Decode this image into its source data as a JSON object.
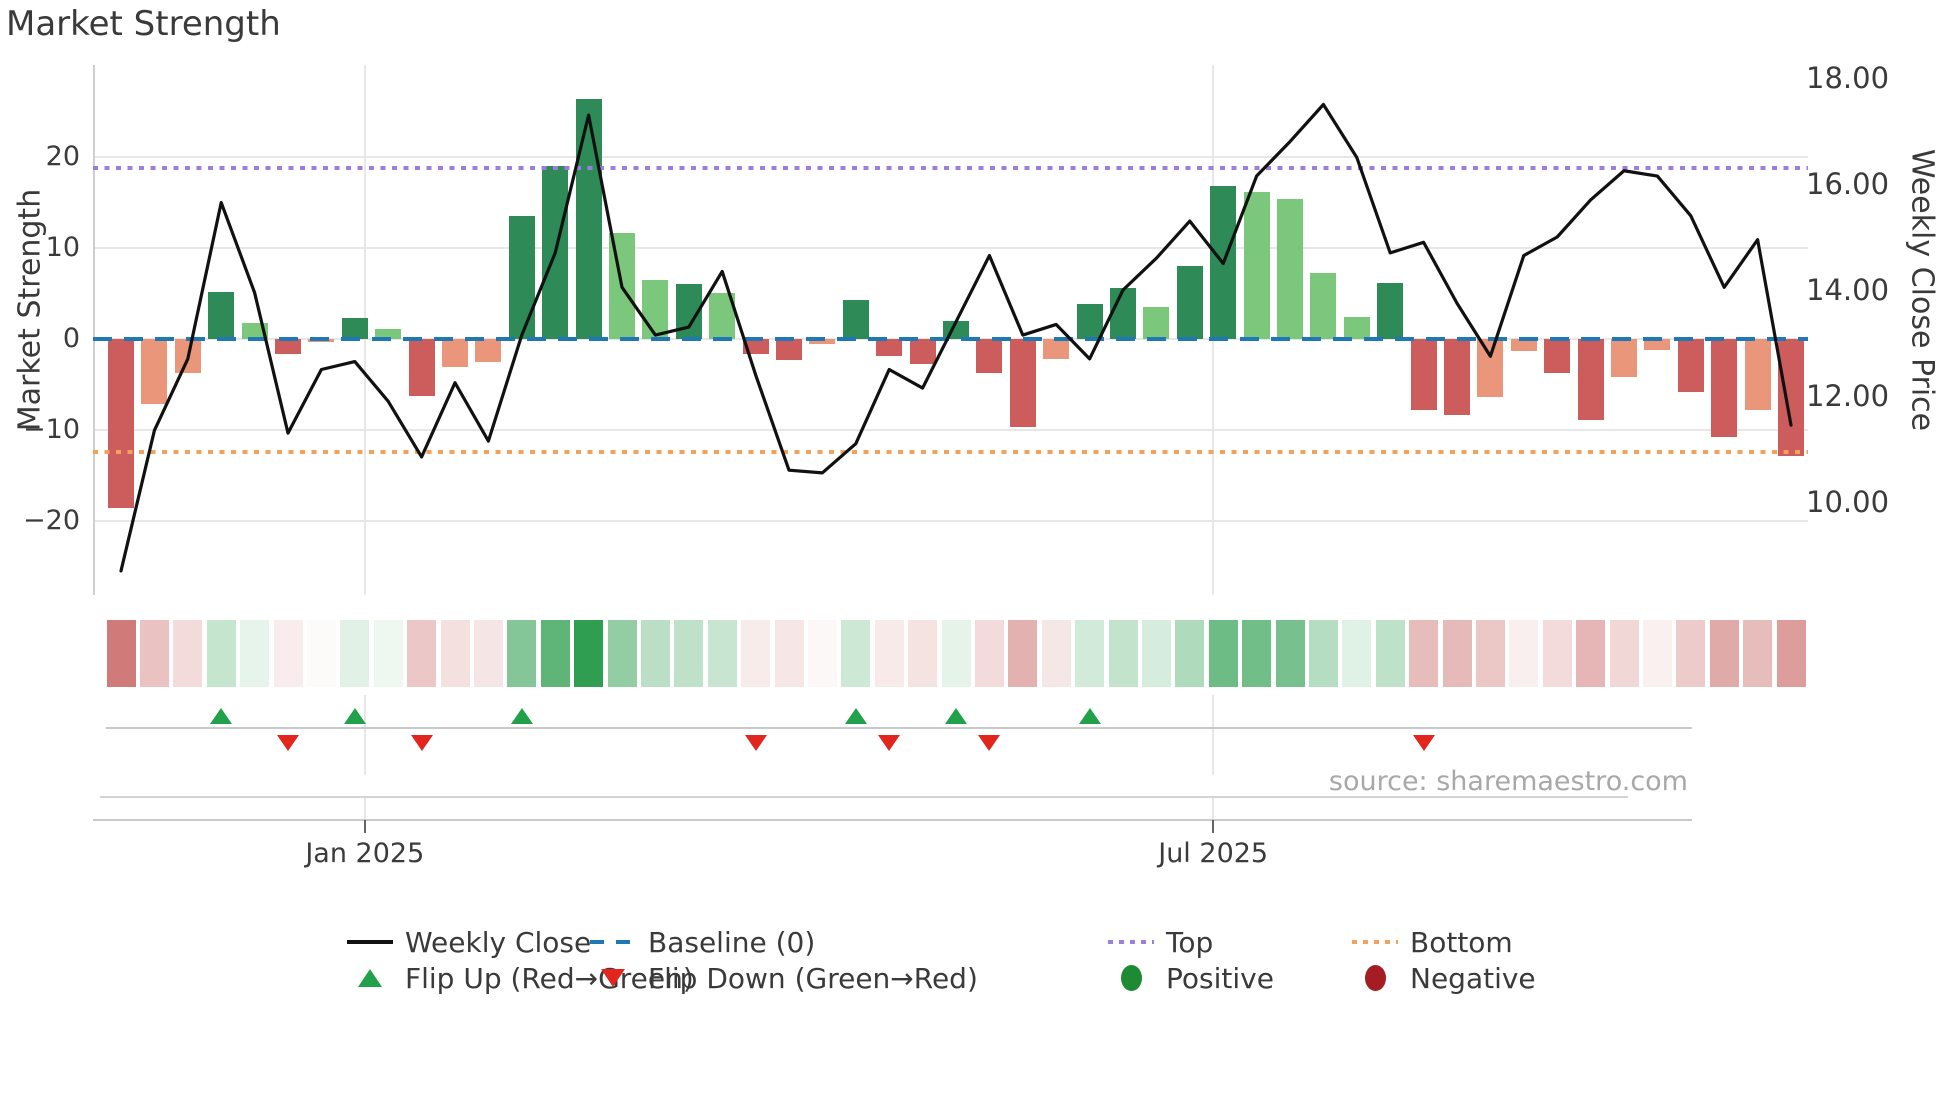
{
  "title": "Market Strength",
  "source": "source: sharemaestro.com",
  "axes": {
    "left_label": "Market Strength",
    "right_label": "Weekly Close Price"
  },
  "chart_data": {
    "type": "combo-bar-line-heatmap",
    "title": "Market Strength",
    "weeks": 51,
    "x_ticks": [
      {
        "label": "Jan 2025",
        "week": 8.3
      },
      {
        "label": "Jul 2025",
        "week": 33.7
      }
    ],
    "left_ticks": [
      {
        "label": "20",
        "value": 20
      },
      {
        "label": "10",
        "value": 10
      },
      {
        "label": "0",
        "value": 0
      },
      {
        "label": "−10",
        "value": -10
      },
      {
        "label": "−20",
        "value": -20
      }
    ],
    "right_ticks": [
      {
        "label": "18.00",
        "value": 18
      },
      {
        "label": "16.00",
        "value": 16
      },
      {
        "label": "14.00",
        "value": 14
      },
      {
        "label": "12.00",
        "value": 12
      },
      {
        "label": "10.00",
        "value": 10
      }
    ],
    "ylim_left": [
      -28.1,
      30.1
    ],
    "baseline_value": 0,
    "top_value": 18.8,
    "bottom_value": -12.4,
    "market_strength": [
      -18.6,
      -7.1,
      -3.7,
      5.2,
      1.8,
      -1.6,
      -0.3,
      2.3,
      1.1,
      -6.3,
      -3.1,
      -2.5,
      13.5,
      19.0,
      26.4,
      11.6,
      6.5,
      6.0,
      5.1,
      -1.7,
      -2.3,
      -0.5,
      4.3,
      -1.9,
      -2.7,
      2.0,
      -3.7,
      -9.7,
      -2.2,
      3.9,
      5.6,
      3.5,
      8.0,
      16.8,
      16.2,
      15.4,
      7.2,
      2.4,
      6.1,
      -7.8,
      -8.3,
      -6.4,
      -1.3,
      -3.7,
      -8.9,
      -4.2,
      -1.2,
      -5.8,
      -10.8,
      -7.8,
      -12.9
    ],
    "bar_styles": [
      "r",
      "s",
      "s",
      "dg",
      "lg",
      "r",
      "s",
      "dg",
      "lg",
      "r",
      "s",
      "s",
      "dg",
      "dg",
      "dg",
      "lg",
      "lg",
      "dg",
      "lg",
      "r",
      "r",
      "s",
      "dg",
      "r",
      "r",
      "dg",
      "r",
      "r",
      "s",
      "dg",
      "dg",
      "lg",
      "dg",
      "dg",
      "lg",
      "lg",
      "lg",
      "lg",
      "dg",
      "r",
      "r",
      "s",
      "s",
      "r",
      "r",
      "s",
      "s",
      "r",
      "r",
      "s",
      "r"
    ],
    "weekly_close": [
      8.7,
      11.35,
      12.7,
      15.65,
      13.95,
      11.3,
      12.5,
      12.65,
      11.9,
      10.85,
      12.25,
      11.15,
      13.15,
      14.7,
      17.3,
      14.05,
      13.15,
      13.3,
      14.35,
      12.4,
      10.6,
      10.55,
      11.1,
      12.5,
      12.15,
      13.4,
      14.65,
      13.15,
      13.35,
      12.7,
      14.0,
      14.6,
      15.3,
      14.5,
      16.15,
      16.8,
      17.5,
      16.5,
      14.7,
      14.9,
      13.75,
      12.75,
      14.65,
      15.0,
      15.7,
      16.25,
      16.15,
      15.4,
      14.05,
      14.95,
      11.45
    ],
    "flip_up_weeks": [
      4,
      8,
      13,
      23,
      26,
      30
    ],
    "flip_down_weeks": [
      6,
      10,
      20,
      24,
      27,
      40
    ],
    "colors": {
      "bar_dark_green": "#2e8b57",
      "bar_light_green": "#7bc87c",
      "bar_red": "#cd5c5c",
      "bar_salmon": "#e9967a",
      "line": "#111111",
      "baseline": "#1f77b4",
      "top": "#9b7ede",
      "bottom": "#f2a25c",
      "flip_up": "#21a14a",
      "flip_down": "#e3261d",
      "positive_legend": "#1e8b33",
      "negative_legend": "#a51d23",
      "heat_green": "#2e9e4f",
      "heat_red": "#c0504d"
    }
  },
  "legend": {
    "rows": [
      [
        {
          "swatch": "line-black",
          "label": "Weekly Close"
        },
        {
          "swatch": "dash-blue",
          "label": "Baseline (0)"
        },
        {
          "swatch": "dot-purple",
          "label": "Top"
        },
        {
          "swatch": "dot-orange",
          "label": "Bottom"
        }
      ],
      [
        {
          "swatch": "triangle-up-green",
          "label": "Flip Up (Red→Green)"
        },
        {
          "swatch": "triangle-down-red",
          "label": "Flip Down (Green→Red)"
        },
        {
          "swatch": "circle-green",
          "label": "Positive"
        },
        {
          "swatch": "circle-darkred",
          "label": "Negative"
        }
      ]
    ]
  }
}
